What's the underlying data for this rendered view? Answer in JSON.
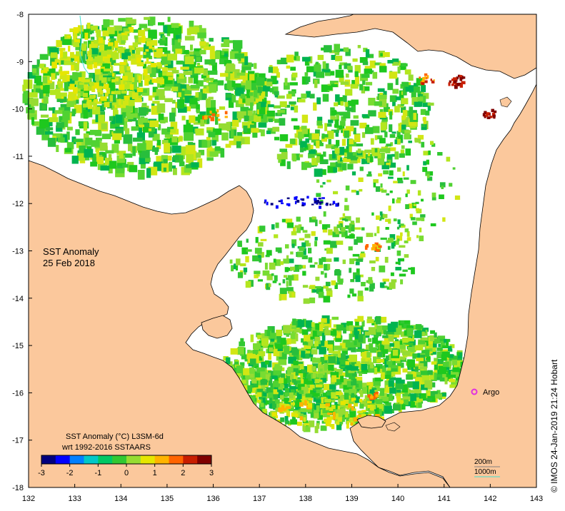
{
  "map": {
    "title_line1": "SST Anomaly",
    "title_line2": "25 Feb 2018",
    "colorbar": {
      "title_line1": "SST Anomaly (°C) L3SM-6d",
      "title_line2": "wrt 1992-2016 SSTAARS",
      "ticks": [
        "-3",
        "-2",
        "-1",
        "0",
        "1",
        "2",
        "3"
      ],
      "colors": [
        "#00007f",
        "#0000ff",
        "#0080ff",
        "#00c8c8",
        "#00c864",
        "#32c832",
        "#96dc32",
        "#e6e600",
        "#ffb400",
        "#ff6400",
        "#c81e00",
        "#7f0000"
      ]
    },
    "x_ticks": [
      "132",
      "133",
      "134",
      "135",
      "136",
      "137",
      "138",
      "139",
      "140",
      "141",
      "142",
      "143"
    ],
    "y_ticks": [
      "-8",
      "-9",
      "-10",
      "-11",
      "-12",
      "-13",
      "-14",
      "-15",
      "-16",
      "-17",
      "-18"
    ],
    "marker_label": "Argo",
    "legend_200m": "200m",
    "legend_1000m": "1000m",
    "credit": "© IMOS 24-Jan-2019 21:24 Hobart",
    "colors": {
      "land": "#fbc89c",
      "nodata": "#ffffff",
      "argo": "#e030e0",
      "contour_1000": "#40e0d0"
    }
  }
}
